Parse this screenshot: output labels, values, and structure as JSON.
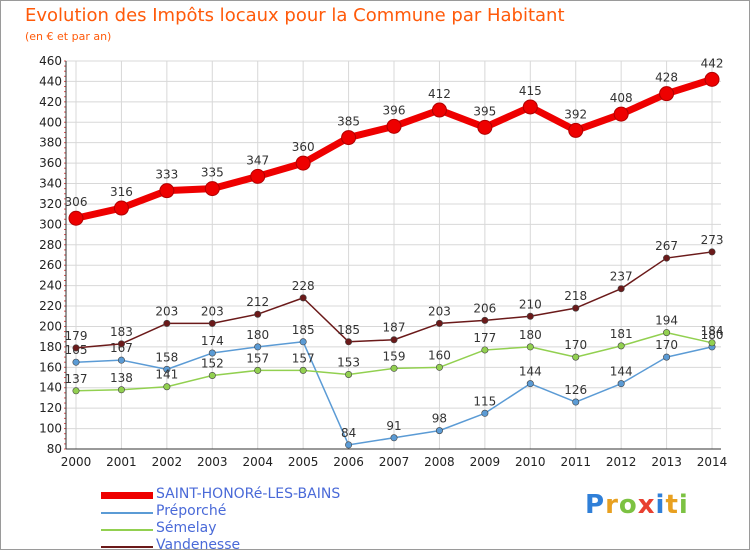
{
  "title": "Evolution des Impôts locaux pour la Commune par Habitant",
  "subtitle": "(en € et par an)",
  "logo": {
    "text": "Proxiti",
    "colors": [
      "#2f7fd8",
      "#e8a020",
      "#7cc242",
      "#e84030",
      "#2f7fd8",
      "#e8a020",
      "#7cc242"
    ]
  },
  "chart_data": {
    "type": "line",
    "title": "Evolution des Impôts locaux pour la Commune par Habitant",
    "ylabel": "(en € et par an)",
    "xlabel": "",
    "ylim": [
      80,
      460
    ],
    "yticks": [
      80,
      100,
      120,
      140,
      160,
      180,
      200,
      220,
      240,
      260,
      280,
      300,
      320,
      340,
      360,
      380,
      400,
      420,
      440,
      460
    ],
    "x": [
      2000,
      2001,
      2002,
      2003,
      2004,
      2005,
      2006,
      2007,
      2008,
      2009,
      2010,
      2011,
      2012,
      2013,
      2014
    ],
    "grid": true,
    "series": [
      {
        "name": "SAINT-HONORé-LES-BAINS",
        "color": "#ee0000",
        "values": [
          306,
          316,
          333,
          335,
          347,
          360,
          385,
          396,
          412,
          395,
          415,
          392,
          408,
          428,
          442
        ]
      },
      {
        "name": "Préporché",
        "color": "#5b9bd5",
        "values": [
          165,
          167,
          158,
          174,
          180,
          185,
          84,
          91,
          98,
          115,
          144,
          126,
          144,
          170,
          180
        ]
      },
      {
        "name": "Sémelay",
        "color": "#92d050",
        "values": [
          137,
          138,
          141,
          152,
          157,
          157,
          153,
          159,
          160,
          177,
          180,
          170,
          181,
          194,
          184
        ]
      },
      {
        "name": "Vandenesse",
        "color": "#6b1a1a",
        "values": [
          179,
          183,
          203,
          203,
          212,
          228,
          185,
          187,
          203,
          206,
          210,
          218,
          237,
          267,
          273
        ]
      }
    ]
  }
}
